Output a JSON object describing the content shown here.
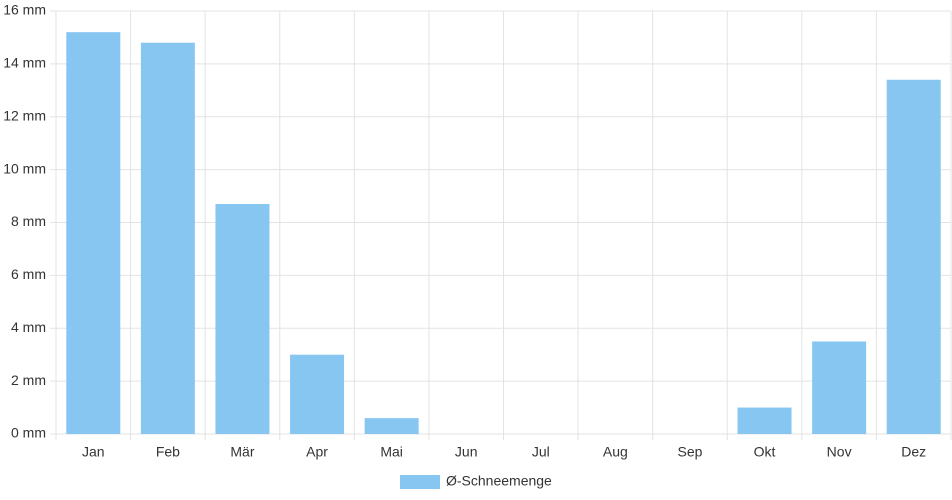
{
  "chart_data": {
    "type": "bar",
    "categories": [
      "Jan",
      "Feb",
      "Mär",
      "Apr",
      "Mai",
      "Jun",
      "Jul",
      "Aug",
      "Sep",
      "Okt",
      "Nov",
      "Dez"
    ],
    "series": [
      {
        "name": "Ø-Schneemenge",
        "color": "#88c6f2",
        "values": [
          15.2,
          14.8,
          8.7,
          3.0,
          0.6,
          0,
          0,
          0,
          0,
          1.0,
          3.5,
          13.4
        ]
      }
    ],
    "ylim": [
      0,
      16
    ],
    "yticks": [
      {
        "value": 0,
        "label": "0 mm"
      },
      {
        "value": 2,
        "label": "2 mm"
      },
      {
        "value": 4,
        "label": "4 mm"
      },
      {
        "value": 6,
        "label": "6 mm"
      },
      {
        "value": 8,
        "label": "8 mm"
      },
      {
        "value": 10,
        "label": "10 mm"
      },
      {
        "value": 12,
        "label": "12 mm"
      },
      {
        "value": 14,
        "label": "14 mm"
      },
      {
        "value": 16,
        "label": "16 mm"
      }
    ],
    "grid": true,
    "legend": "bottom"
  }
}
